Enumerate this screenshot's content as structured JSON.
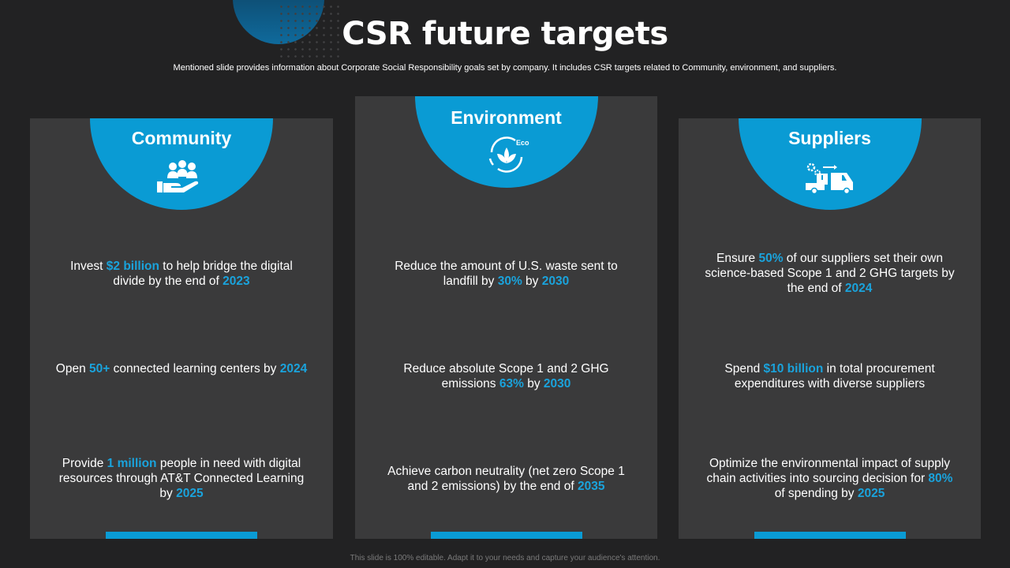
{
  "title": "CSR future targets",
  "subtitle": "Mentioned slide provides information about Corporate Social Responsibility goals set by company. It includes CSR targets related to Community, environment, and suppliers.",
  "footer": "This slide is 100% editable. Adapt it to your needs and capture your audience's attention.",
  "colors": {
    "accent": "#0a9bd4",
    "highlight": "#1aa3dc",
    "card": "#3a3a3b",
    "background": "#222223"
  },
  "cards": [
    {
      "title": "Community",
      "icon": "community-hands-icon",
      "items": [
        {
          "parts": [
            "Invest ",
            "$2 billion",
            " to help bridge the digital divide by the end of ",
            "2023",
            ""
          ]
        },
        {
          "parts": [
            "Open ",
            "50+",
            " connected learning centers by ",
            "2024",
            ""
          ]
        },
        {
          "parts": [
            "Provide ",
            "1 million",
            " people in need with digital resources through AT&T Connected Learning by ",
            "2025",
            ""
          ]
        }
      ]
    },
    {
      "title": "Environment",
      "icon": "eco-leaf-icon",
      "icon_text": "Eco",
      "items": [
        {
          "parts": [
            "Reduce the amount of U.S. waste sent to landfill by ",
            "30%",
            " by ",
            "2030",
            ""
          ]
        },
        {
          "parts": [
            "Reduce absolute Scope 1 and 2 GHG emissions ",
            "63%",
            " by ",
            "2030",
            ""
          ]
        },
        {
          "parts": [
            "Achieve carbon neutrality (net zero Scope 1 and 2 emissions) by the end of ",
            "2035",
            "",
            "",
            ""
          ]
        }
      ]
    },
    {
      "title": "Suppliers",
      "icon": "delivery-truck-icon",
      "items": [
        {
          "parts": [
            "Ensure ",
            "50%",
            " of our suppliers set their own science-based Scope 1 and 2 GHG targets by the end of ",
            "2024",
            ""
          ]
        },
        {
          "parts": [
            "Spend ",
            "$10 billion",
            " in total procurement expenditures with diverse suppliers",
            "",
            ""
          ]
        },
        {
          "parts": [
            "Optimize the environmental impact of supply chain activities into sourcing decision for ",
            "80%",
            " of spending by ",
            "2025",
            ""
          ]
        }
      ]
    }
  ]
}
